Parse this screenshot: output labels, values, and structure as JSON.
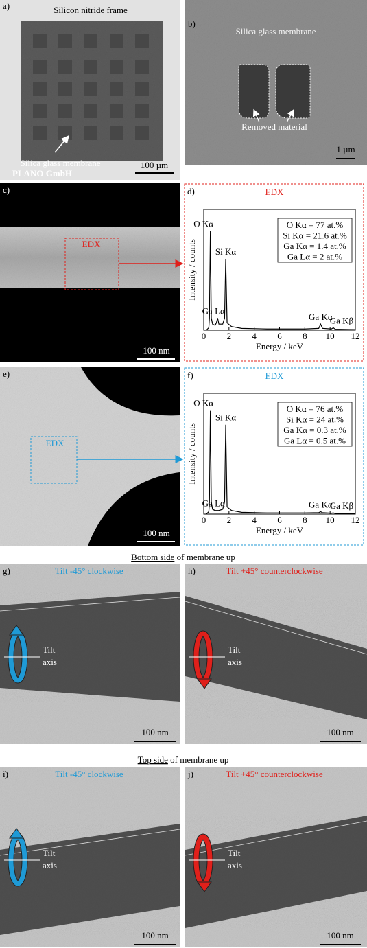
{
  "panels": {
    "a": {
      "label": "a)",
      "title": "Silicon nitride frame",
      "annotation": "Silica glass membrane",
      "credit": "PLANO GmbH",
      "scale": "100 µm"
    },
    "b": {
      "label": "b)",
      "title": "Silica glass membrane",
      "annotation": "Removed material",
      "scale": "1 µm"
    },
    "c": {
      "label": "c)",
      "box_label": "EDX",
      "scale": "100 nm"
    },
    "e": {
      "label": "e)",
      "box_label": "EDX",
      "scale": "100 nm"
    },
    "g": {
      "label": "g)",
      "tilt_title": "Tilt -45° clockwise",
      "axis_label": [
        "Tilt",
        "axis"
      ],
      "scale": "100 nm"
    },
    "h": {
      "label": "h)",
      "tilt_title": "Tilt +45° counterclockwise",
      "axis_label": [
        "Tilt",
        "axis"
      ],
      "scale": "100 nm"
    },
    "i": {
      "label": "i)",
      "tilt_title": "Tilt -45° clockwise",
      "axis_label": [
        "Tilt",
        "axis"
      ],
      "scale": "100 nm"
    },
    "j": {
      "label": "j)",
      "tilt_title": "Tilt +45° counterclockwise",
      "axis_label": [
        "Tilt",
        "axis"
      ],
      "scale": "100 nm"
    }
  },
  "captions": [
    {
      "emphasis": "Bottom side",
      "rest": "of membrane up"
    },
    {
      "emphasis": "Top side",
      "rest": "of membrane up"
    }
  ],
  "chart_data": [
    {
      "type": "line",
      "label": "d)",
      "title": "EDX",
      "title_color": "#e0201b",
      "frame_color": "#e0201b",
      "x_label": "Energy / keV",
      "y_label": "Intensity / counts",
      "x": [
        0.2,
        0.4,
        0.45,
        0.525,
        0.6,
        0.7,
        0.9,
        1.0,
        1.1,
        1.2,
        1.5,
        1.65,
        1.74,
        1.85,
        2.2,
        3,
        5,
        8,
        9.1,
        9.25,
        9.4,
        10.1,
        10.26,
        10.4,
        12
      ],
      "values": [
        0,
        0.02,
        0.1,
        0.82,
        0.1,
        0.05,
        0.04,
        0.06,
        0.1,
        0.05,
        0.05,
        0.1,
        0.59,
        0.06,
        0.03,
        0.015,
        0.01,
        0.01,
        0.015,
        0.05,
        0.015,
        0.01,
        0.02,
        0.008,
        0.005
      ],
      "color": "#000000",
      "xlim": [
        0,
        12
      ],
      "ylim": [
        0,
        1
      ],
      "xticks": [
        0,
        2,
        4,
        6,
        8,
        10,
        12
      ],
      "peak_labels": [
        "O Kα",
        "Ga Lα",
        "Si Kα",
        "Ga Kα",
        "Ga Kβ"
      ],
      "composition": [
        "O Kα = 77 at.%",
        "Si Kα = 21.6 at.%",
        "Ga Kα = 1.4 at.%",
        "Ga Lα = 2 at.%"
      ]
    },
    {
      "type": "line",
      "label": "f)",
      "title": "EDX",
      "title_color": "#1f9ad6",
      "frame_color": "#1f9ad6",
      "x_label": "Energy / keV",
      "y_label": "Intensity / counts",
      "x": [
        0.2,
        0.4,
        0.45,
        0.525,
        0.6,
        0.7,
        0.9,
        1.0,
        1.1,
        1.2,
        1.5,
        1.65,
        1.74,
        1.85,
        2.2,
        3,
        5,
        8,
        9.1,
        9.25,
        9.4,
        10.1,
        10.26,
        10.4,
        12
      ],
      "values": [
        0,
        0.02,
        0.1,
        0.86,
        0.1,
        0.04,
        0.03,
        0.03,
        0.03,
        0.03,
        0.04,
        0.1,
        0.74,
        0.06,
        0.03,
        0.015,
        0.01,
        0.01,
        0.012,
        0.02,
        0.012,
        0.008,
        0.01,
        0.006,
        0.005
      ],
      "color": "#000000",
      "xlim": [
        0,
        12
      ],
      "ylim": [
        0,
        1
      ],
      "xticks": [
        0,
        2,
        4,
        6,
        8,
        10,
        12
      ],
      "peak_labels": [
        "O Kα",
        "Ga Lα",
        "Si Kα",
        "Ga Kα",
        "Ga Kβ"
      ],
      "composition": [
        "O Kα = 76 at.%",
        "Si Kα = 24 at.%",
        "Ga Kα = 0.3 at.%",
        "Ga Lα = 0.5 at.%"
      ]
    }
  ]
}
